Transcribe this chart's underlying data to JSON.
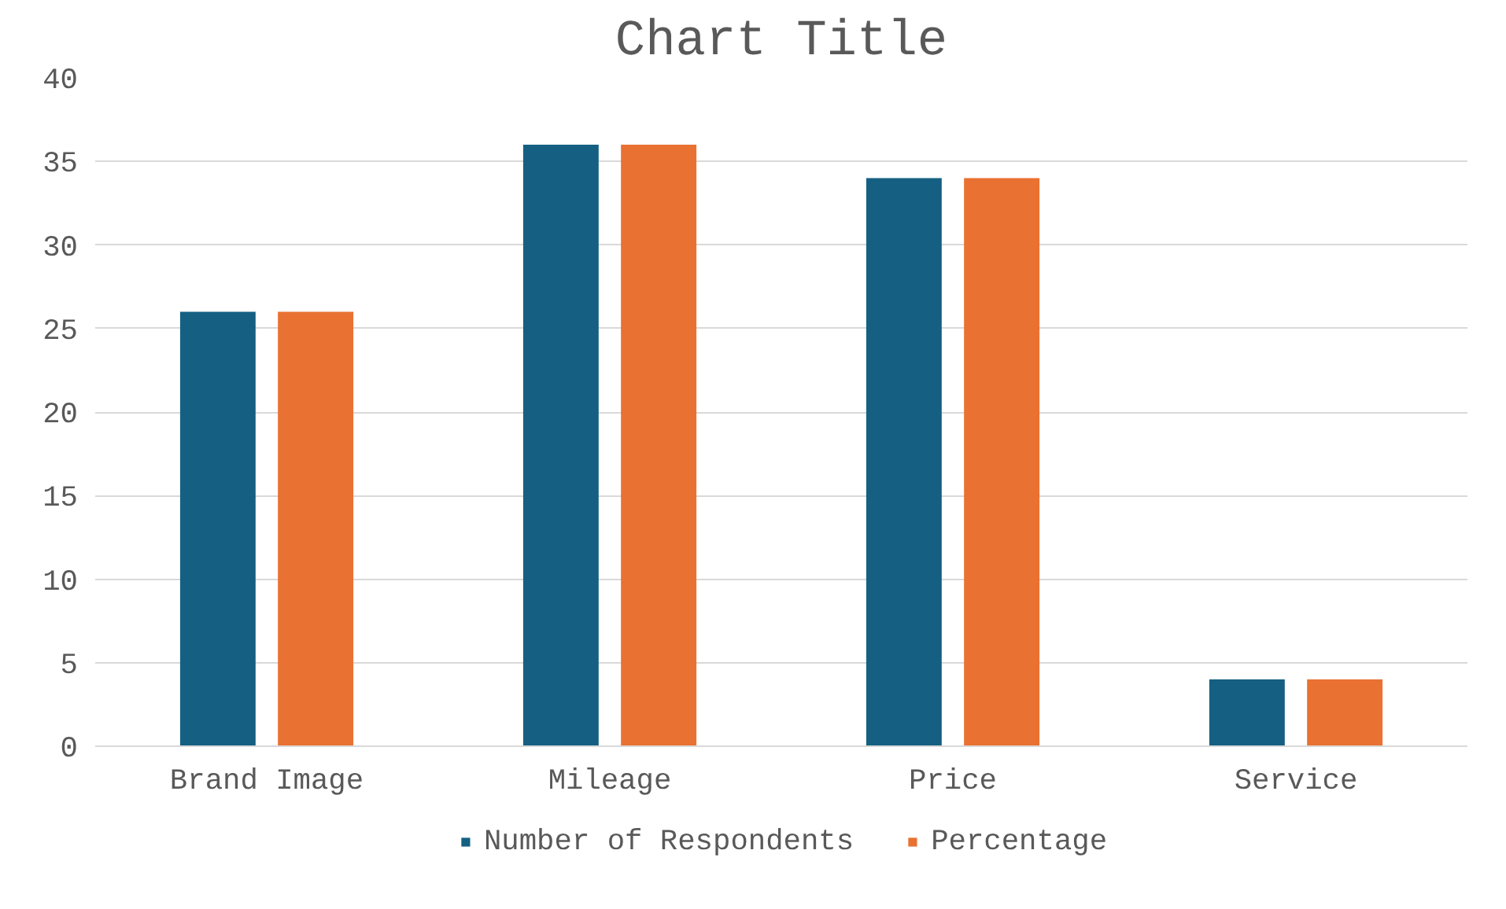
{
  "chart_data": {
    "type": "bar",
    "title": "Chart Title",
    "categories": [
      "Brand Image",
      "Mileage",
      "Price",
      "Service"
    ],
    "series": [
      {
        "name": "Number of Respondents",
        "color": "#156082",
        "values": [
          26,
          36,
          34,
          4
        ]
      },
      {
        "name": "Percentage",
        "color": "#e97132",
        "values": [
          26,
          36,
          34,
          4
        ]
      }
    ],
    "ylim": [
      0,
      40
    ],
    "yticks": [
      0,
      5,
      10,
      15,
      20,
      25,
      30,
      35,
      40
    ],
    "grid": "y",
    "legend": "bottom"
  }
}
